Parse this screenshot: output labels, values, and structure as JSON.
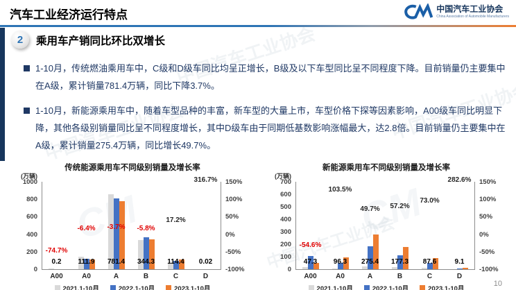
{
  "header": {
    "title": "汽车工业经济运行特点",
    "logo": {
      "org_cn": "中国汽车工业协会",
      "org_en": "China Association of Automobile Manufacturers"
    }
  },
  "section": {
    "number": "2",
    "title": "乘用车产销同比环比双增长"
  },
  "bullets": [
    {
      "text": "1-10月，传统燃油乘用车中，C级和D级车同比均呈正增长，B级及以下车型同比呈不同程度下降。目前销量仍主要集中在A级，累计销量781.4万辆，同比下降3.7%。"
    },
    {
      "text": "1-10月，新能源乘用车中，随着车型品种的丰富，新车型的大量上市，车型价格下探等因素影响，A00级车同比明显下降，其他各级别销量同比呈不同程度增长，其中D级车由于同期低基数影响涨幅最大，达2.8倍。目前销量仍主要集中在A级，累计销量275.4万辆，同比增长49.7%。"
    }
  ],
  "page_number": "10",
  "colors": {
    "accent_blue": "#2e74b5",
    "bar_gray": "#d9d9d9",
    "bar_blue": "#4472c4",
    "bar_orange": "#ed7d31",
    "text_navy": "#1f3864",
    "negative_red": "#e00000",
    "positive_label": "#262626"
  },
  "chart_data": [
    {
      "type": "bar",
      "title": "传统能源乘用车不同级别销量及增长率",
      "unit_label": "(万辆)",
      "categories": [
        "A00",
        "A0",
        "A",
        "B",
        "C",
        "D"
      ],
      "series": [
        {
          "name": "2021.1-10月",
          "color": "#d9d9d9",
          "values": [
            3,
            145,
            860,
            330,
            85,
            0.01
          ]
        },
        {
          "name": "2022.1-10月",
          "color": "#4472c4",
          "values": [
            0.8,
            119.6,
            811.4,
            365.5,
            97.6,
            0.005
          ]
        },
        {
          "name": "2023.1-10月",
          "color": "#ed7d31",
          "values": [
            0.2,
            111.9,
            781.4,
            344.3,
            114.4,
            0.02
          ]
        }
      ],
      "value_labels": [
        "0.2",
        "111.9",
        "781.4",
        "344.3",
        "114.4",
        "0.02"
      ],
      "growth_labels": [
        "-74.7%",
        "-6.4%",
        "-3.7%",
        "-5.8%",
        "17.2%",
        "316.7%"
      ],
      "growth_values": [
        -74.7,
        -6.4,
        -3.7,
        -5.8,
        17.2,
        316.7
      ],
      "ylim": [
        0,
        1000
      ],
      "yticks": [
        0,
        200,
        400,
        600,
        800,
        1000
      ],
      "right_ylim": [
        -100,
        150
      ],
      "right_ticks": [
        "150%",
        "100%",
        "50%",
        "0%",
        "-50%",
        "-100%"
      ],
      "grid": false,
      "legend_position": "bottom"
    },
    {
      "type": "bar",
      "title": "新能源乘用车不同级别销量及增长率",
      "unit_label": "(万辆)",
      "categories": [
        "A00",
        "A0",
        "A",
        "B",
        "C",
        "D"
      ],
      "series": [
        {
          "name": "2021.1-10月",
          "color": "#d9d9d9",
          "values": [
            18,
            8,
            22,
            19,
            11,
            0.3
          ]
        },
        {
          "name": "2022.1-10月",
          "color": "#4472c4",
          "values": [
            104.2,
            47.3,
            184.0,
            112.8,
            50.6,
            2.4
          ]
        },
        {
          "name": "2023.1-10月",
          "color": "#ed7d31",
          "values": [
            47.3,
            96.3,
            275.4,
            177.3,
            87.6,
            9.1
          ]
        }
      ],
      "value_labels": [
        "47.3",
        "96.3",
        "275.4",
        "177.3",
        "87.6",
        "9.1"
      ],
      "growth_labels": [
        "-54.6%",
        "103.5%",
        "49.7%",
        "57.2%",
        "73.0%",
        "282.6%"
      ],
      "growth_values": [
        -54.6,
        103.5,
        49.7,
        57.2,
        73.0,
        282.6
      ],
      "ylim": [
        0,
        700
      ],
      "yticks": [
        0,
        100,
        200,
        300,
        400,
        500,
        600,
        700
      ],
      "right_ylim": [
        -100,
        150
      ],
      "right_ticks": [
        "150%",
        "100%",
        "50%",
        "0%",
        "-50%",
        "-100%"
      ],
      "grid": false,
      "legend_position": "bottom"
    }
  ],
  "watermark_text": "中国汽车工业协会",
  "watermark_mark": "CM"
}
